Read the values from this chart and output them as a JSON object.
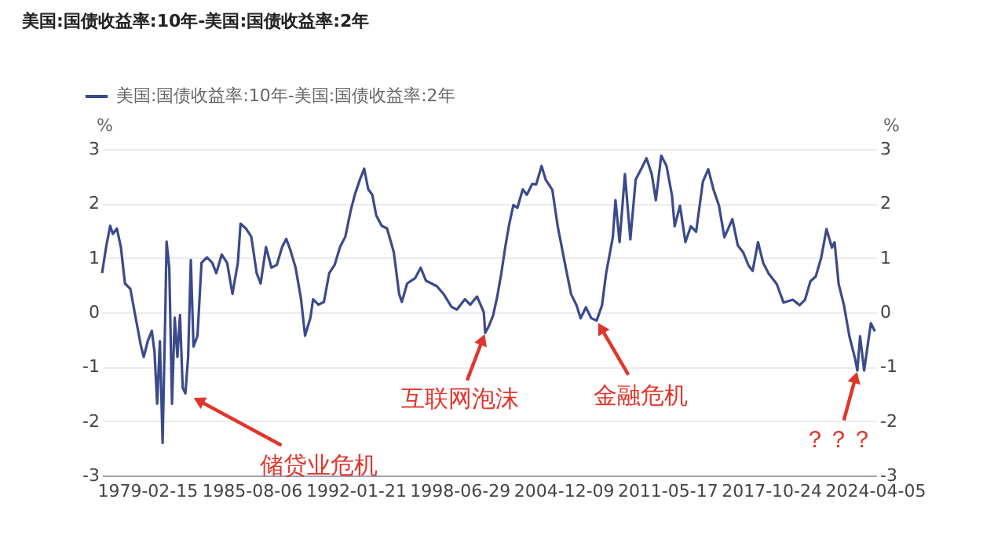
{
  "chart_data": {
    "type": "line",
    "title": "美国:国债收益率:10年-美国:国债收益率:2年",
    "ylabel": "%",
    "y2label": "%",
    "x": [
      "1976-05",
      "1976-08",
      "1976-11",
      "1977-01",
      "1977-04",
      "1977-07",
      "1977-10",
      "1978-02",
      "1978-06",
      "1978-10",
      "1978-12",
      "1979-03",
      "1979-06",
      "1979-08",
      "1979-10",
      "1979-12",
      "1980-02",
      "1980-04",
      "1980-05",
      "1980-07",
      "1980-09",
      "1980-11",
      "1981-01",
      "1981-03",
      "1981-05",
      "1981-07",
      "1981-09",
      "1981-11",
      "1982-01",
      "1982-04",
      "1982-07",
      "1982-11",
      "1983-03",
      "1983-06",
      "1983-10",
      "1984-02",
      "1984-06",
      "1984-10",
      "1984-12",
      "1985-04",
      "1985-08",
      "1985-12",
      "1986-03",
      "1986-07",
      "1986-11",
      "1987-03",
      "1987-07",
      "1987-10",
      "1988-01",
      "1988-05",
      "1988-09",
      "1988-12",
      "1989-04",
      "1989-06",
      "1989-10",
      "1990-02",
      "1990-06",
      "1990-10",
      "1991-02",
      "1991-06",
      "1991-10",
      "1992-01",
      "1992-05",
      "1992-08",
      "1992-11",
      "1993-02",
      "1993-05",
      "1993-09",
      "1994-01",
      "1994-06",
      "1994-10",
      "1994-12",
      "1995-04",
      "1995-10",
      "1996-02",
      "1996-06",
      "1997-02",
      "1997-07",
      "1998-01",
      "1998-05",
      "1998-11",
      "1999-03",
      "1999-08",
      "2000-01",
      "2000-02",
      "2000-05",
      "2000-08",
      "2000-11",
      "2001-02",
      "2001-05",
      "2001-08",
      "2001-11",
      "2002-02",
      "2002-06",
      "2002-09",
      "2003-01",
      "2003-04",
      "2003-08",
      "2003-11",
      "2004-04",
      "2004-08",
      "2005-02",
      "2005-06",
      "2005-10",
      "2006-01",
      "2006-05",
      "2006-09",
      "2007-01",
      "2007-05",
      "2007-08",
      "2008-01",
      "2008-03",
      "2008-06",
      "2008-10",
      "2009-02",
      "2009-06",
      "2009-10",
      "2010-02",
      "2010-06",
      "2010-09",
      "2011-01",
      "2011-05",
      "2011-09",
      "2011-11",
      "2012-03",
      "2012-07",
      "2012-11",
      "2013-03",
      "2013-08",
      "2013-12",
      "2014-04",
      "2014-08",
      "2014-12",
      "2015-06",
      "2015-10",
      "2016-02",
      "2016-06",
      "2016-09",
      "2017-01",
      "2017-05",
      "2017-09",
      "2018-03",
      "2018-08",
      "2019-03",
      "2019-08",
      "2019-12",
      "2020-04",
      "2020-08",
      "2020-12",
      "2021-04",
      "2021-08",
      "2021-10",
      "2022-01",
      "2022-05",
      "2022-09",
      "2023-01",
      "2023-03",
      "2023-05",
      "2023-08",
      "2023-11",
      "2024-01",
      "2024-04"
    ],
    "series": [
      {
        "name": "美国:国债收益率:10年-美国:国债收益率:2年",
        "color": "#3b4a8c",
        "values": [
          0.72,
          1.2,
          1.59,
          1.44,
          1.54,
          1.2,
          0.53,
          0.43,
          -0.1,
          -0.63,
          -0.82,
          -0.53,
          -0.34,
          -0.72,
          -1.68,
          -0.53,
          -2.4,
          -0.05,
          1.3,
          0.82,
          -1.68,
          -0.1,
          -0.82,
          -0.05,
          -1.39,
          -1.49,
          -0.82,
          0.96,
          -0.63,
          -0.43,
          0.91,
          1.01,
          0.91,
          0.72,
          1.06,
          0.91,
          0.34,
          0.91,
          1.63,
          1.54,
          1.39,
          0.72,
          0.53,
          1.2,
          0.82,
          0.87,
          1.2,
          1.35,
          1.15,
          0.82,
          0.24,
          -0.43,
          -0.1,
          0.24,
          0.14,
          0.19,
          0.72,
          0.87,
          1.2,
          1.39,
          1.87,
          2.16,
          2.45,
          2.64,
          2.26,
          2.16,
          1.78,
          1.59,
          1.54,
          1.11,
          0.34,
          0.19,
          0.53,
          0.63,
          0.82,
          0.58,
          0.48,
          0.34,
          0.1,
          0.05,
          0.24,
          0.14,
          0.29,
          0,
          -0.38,
          -0.24,
          -0.05,
          0.29,
          0.72,
          1.2,
          1.63,
          1.97,
          1.92,
          2.26,
          2.16,
          2.36,
          2.35,
          2.69,
          2.44,
          2.25,
          1.58,
          0.81,
          0.33,
          0.13,
          -0.11,
          0.09,
          -0.11,
          -0.15,
          0.13,
          0.71,
          1.38,
          2.06,
          1.29,
          2.54,
          1.34,
          2.44,
          2.63,
          2.83,
          2.54,
          2.06,
          2.88,
          2.69,
          2.15,
          1.58,
          1.96,
          1.29,
          1.58,
          1.48,
          2.4,
          2.63,
          2.25,
          1.96,
          1.38,
          1.71,
          1.23,
          1.1,
          0.86,
          0.76,
          1.29,
          0.9,
          0.71,
          0.52,
          0.18,
          0.23,
          0.13,
          0.23,
          0.57,
          0.66,
          1.0,
          1.53,
          1.19,
          1.29,
          0.52,
          0.13,
          -0.44,
          -0.83,
          -1.07,
          -0.44,
          -1.07,
          -0.54,
          -0.2,
          -0.35
        ]
      }
    ],
    "xlim": [
      "1976-05",
      "2024-05"
    ],
    "xticks": [
      "1979-02-15",
      "1985-08-06",
      "1992-01-21",
      "1998-06-29",
      "2004-12-09",
      "2011-05-17",
      "2017-10-24",
      "2024-04-05"
    ],
    "ylim": [
      -3,
      3
    ],
    "yticks": [
      -3,
      -2,
      -1,
      0,
      1,
      2,
      3
    ],
    "y2lim": [
      -3,
      3
    ],
    "y2ticks": [
      -3,
      -2,
      -1,
      0,
      1,
      2,
      3
    ],
    "grid": "y",
    "legend": "top left",
    "annotations": [
      {
        "text": "储贷业危机",
        "x": "1981-07",
        "y": -1.49
      },
      {
        "text": "互联网泡沫",
        "x": "2000-02",
        "y": -0.38
      },
      {
        "text": "金融危机",
        "x": "2007-01",
        "y": -0.15
      },
      {
        "text": "？？？",
        "x": "2023-03",
        "y": -1.07
      }
    ]
  }
}
